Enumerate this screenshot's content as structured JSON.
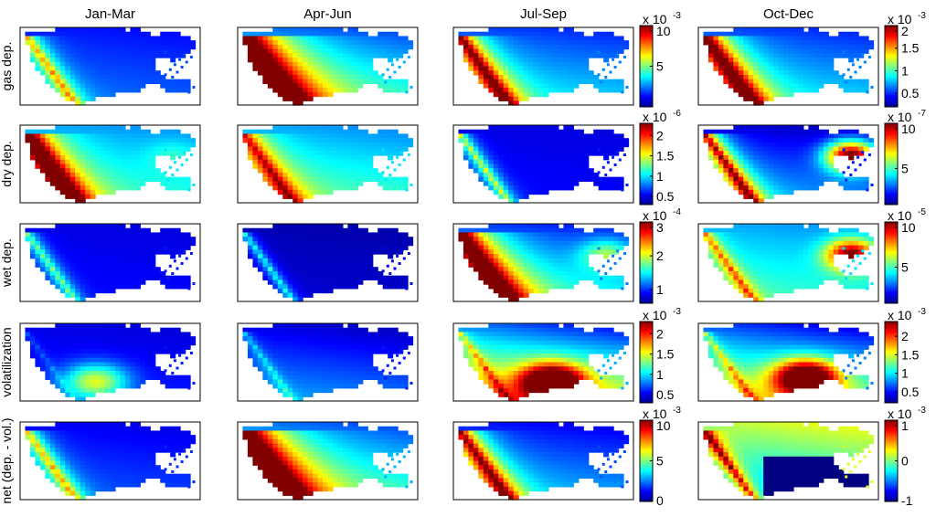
{
  "chart_data": {
    "type": "heatmap",
    "columns": [
      "Jan-Mar",
      "Apr-Jun",
      "Jul-Sep",
      "Oct-Dec"
    ],
    "rows": [
      "gas dep.",
      "dry dep.",
      "wet dep.",
      "volatilization",
      "net (dep. - vol.)"
    ],
    "colormap": "jet",
    "colormap_stops": [
      "#00008f",
      "#0000ff",
      "#0080ff",
      "#00ffff",
      "#80ff80",
      "#ffff00",
      "#ff8000",
      "#ff0000",
      "#800000"
    ],
    "colorbars": [
      [
        {
          "panels": "gas dep., Jan-Mar to Jul-Sep",
          "multiplier": "x 10",
          "exponent": "-3",
          "range": [
            0,
            10
          ],
          "ticks": [
            "10",
            "5"
          ]
        },
        {
          "panels": "gas dep., Oct-Dec",
          "multiplier": "x 10",
          "exponent": "-3",
          "range": [
            0.2,
            2
          ],
          "ticks": [
            "2",
            "1.5",
            "1",
            "0.5"
          ]
        }
      ],
      [
        {
          "panels": "dry dep., Jan-Mar to Jul-Sep",
          "multiplier": "x 10",
          "exponent": "-6",
          "range": [
            0.3,
            2.3
          ],
          "ticks": [
            "2",
            "1.5",
            "1",
            "0.5"
          ]
        },
        {
          "panels": "dry dep., Oct-Dec",
          "multiplier": "x 10",
          "exponent": "-7",
          "range": [
            1,
            10
          ],
          "ticks": [
            "10",
            "5"
          ]
        }
      ],
      [
        {
          "panels": "wet dep., Jan-Mar to Jul-Sep",
          "multiplier": "x 10",
          "exponent": "-4",
          "range": [
            0.6,
            3
          ],
          "ticks": [
            "3",
            "2",
            "1"
          ]
        },
        {
          "panels": "wet dep., Oct-Dec",
          "multiplier": "x 10",
          "exponent": "-5",
          "range": [
            1,
            10
          ],
          "ticks": [
            "10",
            "5"
          ]
        }
      ],
      [
        {
          "panels": "volatilization, Jan-Mar to Jul-Sep",
          "multiplier": "x 10",
          "exponent": "-3",
          "range": [
            0.3,
            2.3
          ],
          "ticks": [
            "2",
            "1.5",
            "1",
            "0.5"
          ]
        },
        {
          "panels": "volatilization, Oct-Dec",
          "multiplier": "x 10",
          "exponent": "-3",
          "range": [
            0.2,
            2.4
          ],
          "ticks": [
            "2",
            "1.5",
            "1",
            "0.5"
          ]
        }
      ],
      [
        {
          "panels": "net (dep. - vol.), Jan-Mar to Jul-Sep",
          "multiplier": "x 10",
          "exponent": "-3",
          "range": [
            0,
            10
          ],
          "ticks": [
            "10",
            "5",
            "0"
          ]
        },
        {
          "panels": "net (dep. - vol.), Oct-Dec",
          "multiplier": "x 10",
          "exponent": "-3",
          "range": [
            -1,
            1
          ],
          "ticks": [
            "1",
            "0",
            "-1"
          ]
        }
      ]
    ],
    "panel_fields": [
      [
        {
          "base": 0.15,
          "coast_high": 0.55,
          "coast_width": 0.07,
          "grad": 0.15,
          "east": 0.0
        },
        {
          "base": 0.25,
          "coast_high": 1.0,
          "coast_width": 0.2,
          "grad": 0.4,
          "east": 0.0
        },
        {
          "base": 0.2,
          "coast_high": 0.85,
          "coast_width": 0.1,
          "grad": 0.3,
          "east": 0.0
        },
        {
          "base": 0.2,
          "coast_high": 0.95,
          "coast_width": 0.12,
          "grad": 0.3,
          "east": 0.0
        }
      ],
      [
        {
          "base": 0.3,
          "coast_high": 1.0,
          "coast_width": 0.12,
          "grad": 0.25,
          "east": 0.1
        },
        {
          "base": 0.3,
          "coast_high": 0.6,
          "coast_width": 0.1,
          "grad": 0.3,
          "east": 0.0
        },
        {
          "base": 0.1,
          "coast_high": 0.5,
          "coast_width": 0.05,
          "grad": 0.05,
          "east": 0.0
        },
        {
          "base": 0.1,
          "coast_high": 0.85,
          "coast_width": 0.08,
          "grad": 0.35,
          "east": 0.9
        }
      ],
      [
        {
          "base": 0.1,
          "coast_high": 0.4,
          "coast_width": 0.05,
          "grad": 0.05,
          "east": 0.0
        },
        {
          "base": 0.05,
          "coast_high": 0.35,
          "coast_width": 0.04,
          "grad": 0.05,
          "east": 0.0
        },
        {
          "base": 0.2,
          "coast_high": 1.0,
          "coast_width": 0.15,
          "grad": 0.4,
          "east": 0.3
        },
        {
          "base": 0.3,
          "coast_high": 0.45,
          "coast_width": 0.05,
          "grad": 0.25,
          "east": 0.7
        }
      ],
      [
        {
          "base": 0.1,
          "coast_high": 0.1,
          "coast_width": 0.02,
          "grad": 0.1,
          "east": 0.0,
          "blob": [
            0.42,
            0.75,
            0.45
          ]
        },
        {
          "base": 0.1,
          "coast_high": 0.2,
          "coast_width": 0.03,
          "grad": 0.3,
          "east": 0.0
        },
        {
          "base": 0.25,
          "coast_high": 0.3,
          "coast_width": 0.03,
          "grad": 0.8,
          "east": 0.0,
          "blob": [
            0.55,
            0.75,
            0.85
          ]
        },
        {
          "base": 0.2,
          "coast_high": 0.3,
          "coast_width": 0.03,
          "grad": 0.7,
          "east": 0.0,
          "blob": [
            0.6,
            0.7,
            0.9
          ]
        }
      ],
      [
        {
          "base": 0.12,
          "coast_high": 0.55,
          "coast_width": 0.07,
          "grad": 0.15,
          "east": 0.0
        },
        {
          "base": 0.25,
          "coast_high": 1.0,
          "coast_width": 0.2,
          "grad": 0.4,
          "east": 0.0
        },
        {
          "base": 0.15,
          "coast_high": 0.85,
          "coast_width": 0.1,
          "grad": 0.3,
          "east": 0.0
        },
        {
          "base": 0.55,
          "coast_high": 0.65,
          "coast_width": 0.05,
          "grad": -0.45,
          "east": 0.0,
          "invert_south": 0.5
        }
      ]
    ]
  }
}
